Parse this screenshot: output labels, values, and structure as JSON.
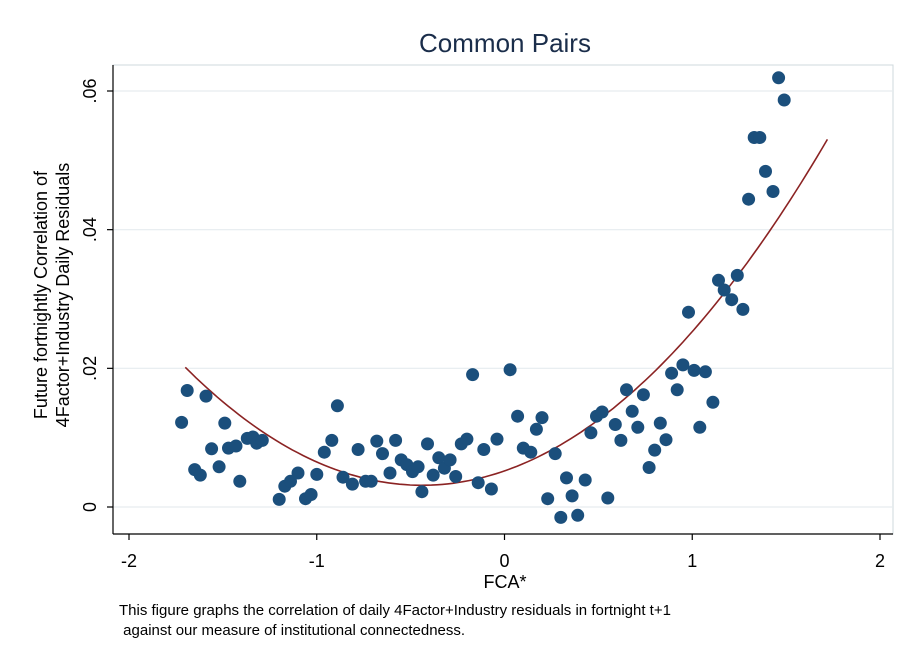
{
  "chart_data": {
    "type": "scatter",
    "title": "Common Pairs",
    "xlabel": "FCA*",
    "ylabel": [
      "Future fortnightly Correlation of",
      "4Factor+Industry Daily Residuals"
    ],
    "xlim": [
      -2,
      2
    ],
    "ylim": [
      0,
      0.06
    ],
    "x_ticks": [
      -2,
      -1,
      0,
      1,
      2
    ],
    "x_tick_labels": [
      "-2",
      "-1",
      "0",
      "1",
      "2"
    ],
    "y_ticks": [
      0,
      0.02,
      0.04,
      0.06
    ],
    "y_tick_labels": [
      "0",
      ".02",
      ".04",
      ".06"
    ],
    "grid": "horizontal",
    "legend": "none",
    "colors": {
      "points": "#1b4f7c",
      "fit": "#8b2323",
      "grid": "#e6ecef",
      "frame": "#cfd8dc"
    },
    "series": [
      {
        "type": "scatter",
        "points": [
          [
            -1.72,
            0.0122
          ],
          [
            -1.69,
            0.0168
          ],
          [
            -1.65,
            0.0054
          ],
          [
            -1.62,
            0.0046
          ],
          [
            -1.59,
            0.016
          ],
          [
            -1.56,
            0.0084
          ],
          [
            -1.52,
            0.0058
          ],
          [
            -1.49,
            0.0121
          ],
          [
            -1.47,
            0.0085
          ],
          [
            -1.43,
            0.0088
          ],
          [
            -1.41,
            0.0037
          ],
          [
            -1.37,
            0.0099
          ],
          [
            -1.34,
            0.0101
          ],
          [
            -1.32,
            0.0092
          ],
          [
            -1.29,
            0.0096
          ],
          [
            -1.2,
            0.0011
          ],
          [
            -1.17,
            0.003
          ],
          [
            -1.14,
            0.0037
          ],
          [
            -1.1,
            0.0049
          ],
          [
            -1.06,
            0.0012
          ],
          [
            -1.03,
            0.0018
          ],
          [
            -1.0,
            0.0047
          ],
          [
            -0.96,
            0.0079
          ],
          [
            -0.92,
            0.0096
          ],
          [
            -0.89,
            0.0146
          ],
          [
            -0.86,
            0.0043
          ],
          [
            -0.81,
            0.0033
          ],
          [
            -0.78,
            0.0083
          ],
          [
            -0.74,
            0.0037
          ],
          [
            -0.71,
            0.0037
          ],
          [
            -0.68,
            0.0095
          ],
          [
            -0.65,
            0.0077
          ],
          [
            -0.61,
            0.0049
          ],
          [
            -0.58,
            0.0096
          ],
          [
            -0.55,
            0.0068
          ],
          [
            -0.52,
            0.0061
          ],
          [
            -0.49,
            0.0051
          ],
          [
            -0.46,
            0.0058
          ],
          [
            -0.44,
            0.0022
          ],
          [
            -0.41,
            0.0091
          ],
          [
            -0.38,
            0.0046
          ],
          [
            -0.35,
            0.0071
          ],
          [
            -0.32,
            0.0056
          ],
          [
            -0.29,
            0.0068
          ],
          [
            -0.26,
            0.0044
          ],
          [
            -0.23,
            0.0091
          ],
          [
            -0.2,
            0.0098
          ],
          [
            -0.17,
            0.0191
          ],
          [
            -0.14,
            0.0035
          ],
          [
            -0.11,
            0.0083
          ],
          [
            -0.07,
            0.0026
          ],
          [
            -0.04,
            0.0098
          ],
          [
            0.03,
            0.0198
          ],
          [
            0.07,
            0.0131
          ],
          [
            0.1,
            0.0085
          ],
          [
            0.14,
            0.0079
          ],
          [
            0.17,
            0.0112
          ],
          [
            0.2,
            0.0129
          ],
          [
            0.23,
            0.0012
          ],
          [
            0.27,
            0.0077
          ],
          [
            0.3,
            -0.0015
          ],
          [
            0.33,
            0.0042
          ],
          [
            0.36,
            0.0016
          ],
          [
            0.39,
            -0.0012
          ],
          [
            0.43,
            0.0039
          ],
          [
            0.46,
            0.0107
          ],
          [
            0.49,
            0.0131
          ],
          [
            0.52,
            0.0137
          ],
          [
            0.55,
            0.0013
          ],
          [
            0.59,
            0.0119
          ],
          [
            0.62,
            0.0096
          ],
          [
            0.65,
            0.0169
          ],
          [
            0.68,
            0.0138
          ],
          [
            0.71,
            0.0115
          ],
          [
            0.74,
            0.0162
          ],
          [
            0.77,
            0.0057
          ],
          [
            0.8,
            0.0082
          ],
          [
            0.83,
            0.0121
          ],
          [
            0.86,
            0.0097
          ],
          [
            0.89,
            0.0193
          ],
          [
            0.92,
            0.0169
          ],
          [
            0.95,
            0.0205
          ],
          [
            0.98,
            0.0281
          ],
          [
            1.01,
            0.0197
          ],
          [
            1.04,
            0.0115
          ],
          [
            1.07,
            0.0195
          ],
          [
            1.11,
            0.0151
          ],
          [
            1.14,
            0.0327
          ],
          [
            1.17,
            0.0313
          ],
          [
            1.21,
            0.0299
          ],
          [
            1.24,
            0.0334
          ],
          [
            1.27,
            0.0285
          ],
          [
            1.3,
            0.0444
          ],
          [
            1.33,
            0.0533
          ],
          [
            1.36,
            0.0533
          ],
          [
            1.39,
            0.0484
          ],
          [
            1.43,
            0.0455
          ],
          [
            1.46,
            0.0619
          ],
          [
            1.49,
            0.0587
          ]
        ]
      },
      {
        "type": "line",
        "name": "",
        "fit": "quadratic",
        "x_range": [
          -1.7,
          1.72
        ],
        "coefficients": {
          "intercept": 0.0052,
          "linear": 0.0094,
          "quadratic": 0.0107
        }
      }
    ]
  },
  "caption": {
    "line1": "This figure graphs the correlation of daily 4Factor+Industry residuals in fortnight t+1",
    "line2": " against our measure of institutional connectedness."
  }
}
